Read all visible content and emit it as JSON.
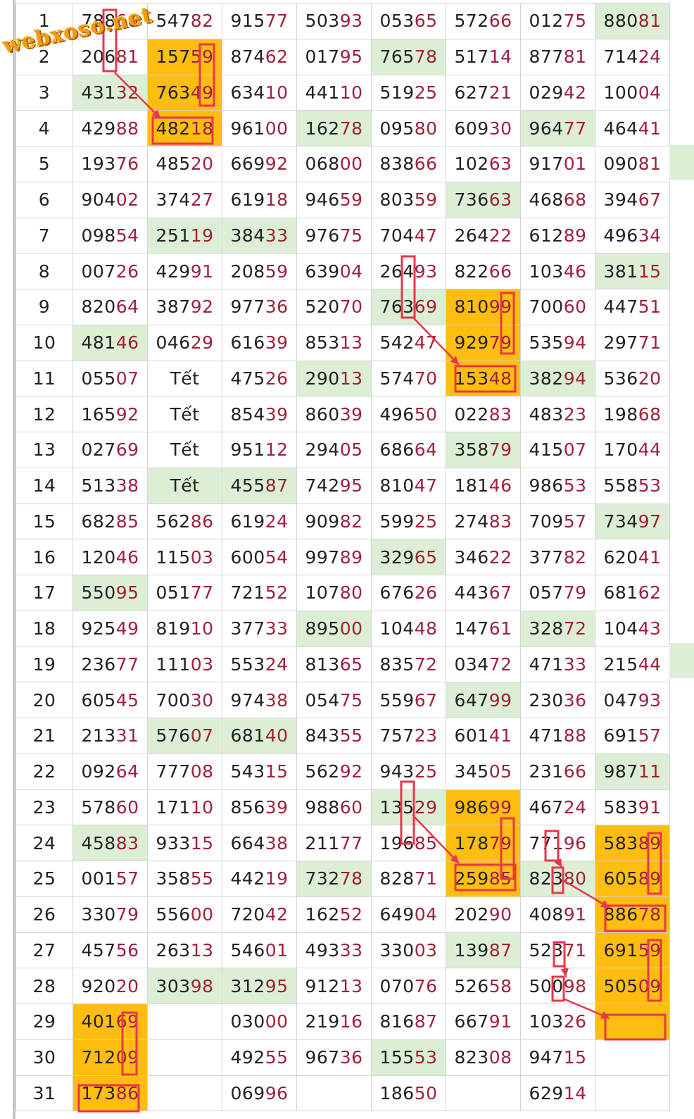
{
  "watermark": "webxoso.net",
  "colors": {
    "green_highlight": "#dcefd6",
    "orange_highlight": "#ffbd0f",
    "mark_red": "#e8364a",
    "day_blue": "#1e3aa8",
    "last_digits": "#a0213a"
  },
  "rows": [
    {
      "day": "1",
      "cells": [
        {
          "v": "78860",
          "h": ""
        },
        {
          "v": "54782",
          "h": ""
        },
        {
          "v": "91577",
          "h": ""
        },
        {
          "v": "50393",
          "h": ""
        },
        {
          "v": "05365",
          "h": ""
        },
        {
          "v": "57266",
          "h": ""
        },
        {
          "v": "01275",
          "h": ""
        },
        {
          "v": "88081",
          "h": "g"
        }
      ],
      "edge": ""
    },
    {
      "day": "2",
      "cells": [
        {
          "v": "20681",
          "h": ""
        },
        {
          "v": "15759",
          "h": "o"
        },
        {
          "v": "87462",
          "h": ""
        },
        {
          "v": "01795",
          "h": ""
        },
        {
          "v": "76578",
          "h": "g"
        },
        {
          "v": "51714",
          "h": ""
        },
        {
          "v": "87781",
          "h": ""
        },
        {
          "v": "71424",
          "h": ""
        }
      ],
      "edge": ""
    },
    {
      "day": "3",
      "cells": [
        {
          "v": "43132",
          "h": "g"
        },
        {
          "v": "76349",
          "h": "o"
        },
        {
          "v": "63410",
          "h": ""
        },
        {
          "v": "44110",
          "h": ""
        },
        {
          "v": "51925",
          "h": ""
        },
        {
          "v": "62721",
          "h": ""
        },
        {
          "v": "02942",
          "h": ""
        },
        {
          "v": "10004",
          "h": ""
        }
      ],
      "edge": ""
    },
    {
      "day": "4",
      "cells": [
        {
          "v": "42988",
          "h": ""
        },
        {
          "v": "48218",
          "h": "o"
        },
        {
          "v": "96100",
          "h": ""
        },
        {
          "v": "16278",
          "h": "g"
        },
        {
          "v": "09580",
          "h": ""
        },
        {
          "v": "60930",
          "h": ""
        },
        {
          "v": "96477",
          "h": "g"
        },
        {
          "v": "46441",
          "h": ""
        }
      ],
      "edge": ""
    },
    {
      "day": "5",
      "cells": [
        {
          "v": "19376",
          "h": ""
        },
        {
          "v": "48520",
          "h": ""
        },
        {
          "v": "66992",
          "h": ""
        },
        {
          "v": "06800",
          "h": ""
        },
        {
          "v": "83866",
          "h": ""
        },
        {
          "v": "10263",
          "h": ""
        },
        {
          "v": "91701",
          "h": ""
        },
        {
          "v": "09081",
          "h": ""
        }
      ],
      "edge": "g"
    },
    {
      "day": "6",
      "cells": [
        {
          "v": "90402",
          "h": ""
        },
        {
          "v": "37427",
          "h": ""
        },
        {
          "v": "61918",
          "h": ""
        },
        {
          "v": "94659",
          "h": ""
        },
        {
          "v": "80359",
          "h": ""
        },
        {
          "v": "73663",
          "h": "g"
        },
        {
          "v": "46868",
          "h": ""
        },
        {
          "v": "39467",
          "h": ""
        }
      ],
      "edge": ""
    },
    {
      "day": "7",
      "cells": [
        {
          "v": "09854",
          "h": ""
        },
        {
          "v": "25119",
          "h": "g"
        },
        {
          "v": "38433",
          "h": "g"
        },
        {
          "v": "97675",
          "h": ""
        },
        {
          "v": "70447",
          "h": ""
        },
        {
          "v": "26422",
          "h": ""
        },
        {
          "v": "61289",
          "h": ""
        },
        {
          "v": "49634",
          "h": ""
        }
      ],
      "edge": ""
    },
    {
      "day": "8",
      "cells": [
        {
          "v": "00726",
          "h": ""
        },
        {
          "v": "42991",
          "h": ""
        },
        {
          "v": "20859",
          "h": ""
        },
        {
          "v": "63904",
          "h": ""
        },
        {
          "v": "26493",
          "h": ""
        },
        {
          "v": "82266",
          "h": ""
        },
        {
          "v": "10346",
          "h": ""
        },
        {
          "v": "38115",
          "h": "g"
        }
      ],
      "edge": ""
    },
    {
      "day": "9",
      "cells": [
        {
          "v": "82064",
          "h": ""
        },
        {
          "v": "38792",
          "h": ""
        },
        {
          "v": "97736",
          "h": ""
        },
        {
          "v": "52070",
          "h": ""
        },
        {
          "v": "76369",
          "h": "g"
        },
        {
          "v": "81099",
          "h": "o"
        },
        {
          "v": "70060",
          "h": ""
        },
        {
          "v": "44751",
          "h": ""
        }
      ],
      "edge": ""
    },
    {
      "day": "10",
      "cells": [
        {
          "v": "48146",
          "h": "g"
        },
        {
          "v": "04629",
          "h": ""
        },
        {
          "v": "61639",
          "h": ""
        },
        {
          "v": "85313",
          "h": ""
        },
        {
          "v": "54247",
          "h": ""
        },
        {
          "v": "92979",
          "h": "o"
        },
        {
          "v": "53594",
          "h": ""
        },
        {
          "v": "29771",
          "h": ""
        }
      ],
      "edge": ""
    },
    {
      "day": "11",
      "cells": [
        {
          "v": "05507",
          "h": ""
        },
        {
          "v": "Tết",
          "h": ""
        },
        {
          "v": "47526",
          "h": ""
        },
        {
          "v": "29013",
          "h": "g"
        },
        {
          "v": "57470",
          "h": ""
        },
        {
          "v": "15348",
          "h": "o"
        },
        {
          "v": "38294",
          "h": "g"
        },
        {
          "v": "53620",
          "h": ""
        }
      ],
      "edge": ""
    },
    {
      "day": "12",
      "cells": [
        {
          "v": "16592",
          "h": ""
        },
        {
          "v": "Tết",
          "h": ""
        },
        {
          "v": "85439",
          "h": ""
        },
        {
          "v": "86039",
          "h": ""
        },
        {
          "v": "49650",
          "h": ""
        },
        {
          "v": "02283",
          "h": ""
        },
        {
          "v": "48323",
          "h": ""
        },
        {
          "v": "19868",
          "h": ""
        }
      ],
      "edge": ""
    },
    {
      "day": "13",
      "cells": [
        {
          "v": "02769",
          "h": ""
        },
        {
          "v": "Tết",
          "h": ""
        },
        {
          "v": "95112",
          "h": ""
        },
        {
          "v": "29405",
          "h": ""
        },
        {
          "v": "68664",
          "h": ""
        },
        {
          "v": "35879",
          "h": "g"
        },
        {
          "v": "41507",
          "h": ""
        },
        {
          "v": "17044",
          "h": ""
        }
      ],
      "edge": ""
    },
    {
      "day": "14",
      "cells": [
        {
          "v": "51338",
          "h": ""
        },
        {
          "v": "Tết",
          "h": "g"
        },
        {
          "v": "45587",
          "h": "g"
        },
        {
          "v": "74295",
          "h": ""
        },
        {
          "v": "81047",
          "h": ""
        },
        {
          "v": "18146",
          "h": ""
        },
        {
          "v": "98653",
          "h": ""
        },
        {
          "v": "55853",
          "h": ""
        }
      ],
      "edge": ""
    },
    {
      "day": "15",
      "cells": [
        {
          "v": "68285",
          "h": ""
        },
        {
          "v": "56286",
          "h": ""
        },
        {
          "v": "61924",
          "h": ""
        },
        {
          "v": "90982",
          "h": ""
        },
        {
          "v": "59925",
          "h": ""
        },
        {
          "v": "27483",
          "h": ""
        },
        {
          "v": "70957",
          "h": ""
        },
        {
          "v": "73497",
          "h": "g"
        }
      ],
      "edge": ""
    },
    {
      "day": "16",
      "cells": [
        {
          "v": "12046",
          "h": ""
        },
        {
          "v": "11503",
          "h": ""
        },
        {
          "v": "60054",
          "h": ""
        },
        {
          "v": "99789",
          "h": ""
        },
        {
          "v": "32965",
          "h": "g"
        },
        {
          "v": "34622",
          "h": ""
        },
        {
          "v": "37782",
          "h": ""
        },
        {
          "v": "62041",
          "h": ""
        }
      ],
      "edge": ""
    },
    {
      "day": "17",
      "cells": [
        {
          "v": "55095",
          "h": "g"
        },
        {
          "v": "05177",
          "h": ""
        },
        {
          "v": "72152",
          "h": ""
        },
        {
          "v": "10780",
          "h": ""
        },
        {
          "v": "67626",
          "h": ""
        },
        {
          "v": "44367",
          "h": ""
        },
        {
          "v": "05779",
          "h": ""
        },
        {
          "v": "68162",
          "h": ""
        }
      ],
      "edge": ""
    },
    {
      "day": "18",
      "cells": [
        {
          "v": "92549",
          "h": ""
        },
        {
          "v": "81910",
          "h": ""
        },
        {
          "v": "37733",
          "h": ""
        },
        {
          "v": "89500",
          "h": "g"
        },
        {
          "v": "10448",
          "h": ""
        },
        {
          "v": "14761",
          "h": ""
        },
        {
          "v": "32872",
          "h": "g"
        },
        {
          "v": "10443",
          "h": ""
        }
      ],
      "edge": ""
    },
    {
      "day": "19",
      "cells": [
        {
          "v": "23677",
          "h": ""
        },
        {
          "v": "11103",
          "h": ""
        },
        {
          "v": "55324",
          "h": ""
        },
        {
          "v": "81365",
          "h": ""
        },
        {
          "v": "83572",
          "h": ""
        },
        {
          "v": "03472",
          "h": ""
        },
        {
          "v": "47133",
          "h": ""
        },
        {
          "v": "21544",
          "h": ""
        }
      ],
      "edge": "g"
    },
    {
      "day": "20",
      "cells": [
        {
          "v": "60545",
          "h": ""
        },
        {
          "v": "70030",
          "h": ""
        },
        {
          "v": "97438",
          "h": ""
        },
        {
          "v": "05475",
          "h": ""
        },
        {
          "v": "55967",
          "h": ""
        },
        {
          "v": "64799",
          "h": "g"
        },
        {
          "v": "23036",
          "h": ""
        },
        {
          "v": "04793",
          "h": ""
        }
      ],
      "edge": ""
    },
    {
      "day": "21",
      "cells": [
        {
          "v": "21331",
          "h": ""
        },
        {
          "v": "57607",
          "h": "g"
        },
        {
          "v": "68140",
          "h": "g"
        },
        {
          "v": "84355",
          "h": ""
        },
        {
          "v": "75723",
          "h": ""
        },
        {
          "v": "60141",
          "h": ""
        },
        {
          "v": "47188",
          "h": ""
        },
        {
          "v": "69157",
          "h": ""
        }
      ],
      "edge": ""
    },
    {
      "day": "22",
      "cells": [
        {
          "v": "09264",
          "h": ""
        },
        {
          "v": "77708",
          "h": ""
        },
        {
          "v": "54315",
          "h": ""
        },
        {
          "v": "56292",
          "h": ""
        },
        {
          "v": "94325",
          "h": ""
        },
        {
          "v": "34505",
          "h": ""
        },
        {
          "v": "23166",
          "h": ""
        },
        {
          "v": "98711",
          "h": "g"
        }
      ],
      "edge": ""
    },
    {
      "day": "23",
      "cells": [
        {
          "v": "57860",
          "h": ""
        },
        {
          "v": "17110",
          "h": ""
        },
        {
          "v": "85639",
          "h": ""
        },
        {
          "v": "98860",
          "h": ""
        },
        {
          "v": "13529",
          "h": "g"
        },
        {
          "v": "98699",
          "h": "o"
        },
        {
          "v": "46724",
          "h": ""
        },
        {
          "v": "58391",
          "h": ""
        }
      ],
      "edge": ""
    },
    {
      "day": "24",
      "cells": [
        {
          "v": "45883",
          "h": "g"
        },
        {
          "v": "93315",
          "h": ""
        },
        {
          "v": "66438",
          "h": ""
        },
        {
          "v": "21177",
          "h": ""
        },
        {
          "v": "19685",
          "h": ""
        },
        {
          "v": "17879",
          "h": "o"
        },
        {
          "v": "77196",
          "h": ""
        },
        {
          "v": "58389",
          "h": "o"
        }
      ],
      "edge": ""
    },
    {
      "day": "25",
      "cells": [
        {
          "v": "00157",
          "h": ""
        },
        {
          "v": "35855",
          "h": ""
        },
        {
          "v": "44219",
          "h": ""
        },
        {
          "v": "73278",
          "h": "g"
        },
        {
          "v": "82871",
          "h": ""
        },
        {
          "v": "25985",
          "h": "o"
        },
        {
          "v": "82380",
          "h": "g"
        },
        {
          "v": "60589",
          "h": "o"
        }
      ],
      "edge": ""
    },
    {
      "day": "26",
      "cells": [
        {
          "v": "33079",
          "h": ""
        },
        {
          "v": "55600",
          "h": ""
        },
        {
          "v": "72042",
          "h": ""
        },
        {
          "v": "16252",
          "h": ""
        },
        {
          "v": "64904",
          "h": ""
        },
        {
          "v": "20290",
          "h": ""
        },
        {
          "v": "40891",
          "h": ""
        },
        {
          "v": "88678",
          "h": "o"
        }
      ],
      "edge": ""
    },
    {
      "day": "27",
      "cells": [
        {
          "v": "45756",
          "h": ""
        },
        {
          "v": "26313",
          "h": ""
        },
        {
          "v": "54601",
          "h": ""
        },
        {
          "v": "49333",
          "h": ""
        },
        {
          "v": "33003",
          "h": ""
        },
        {
          "v": "13987",
          "h": "g"
        },
        {
          "v": "52371",
          "h": ""
        },
        {
          "v": "69159",
          "h": "o"
        }
      ],
      "edge": ""
    },
    {
      "day": "28",
      "cells": [
        {
          "v": "92020",
          "h": ""
        },
        {
          "v": "30398",
          "h": "g"
        },
        {
          "v": "31295",
          "h": "g"
        },
        {
          "v": "91213",
          "h": ""
        },
        {
          "v": "07076",
          "h": ""
        },
        {
          "v": "52658",
          "h": ""
        },
        {
          "v": "50098",
          "h": ""
        },
        {
          "v": "50509",
          "h": "o"
        }
      ],
      "edge": ""
    },
    {
      "day": "29",
      "cells": [
        {
          "v": "40169",
          "h": "o"
        },
        {
          "v": "",
          "h": ""
        },
        {
          "v": "03000",
          "h": ""
        },
        {
          "v": "21916",
          "h": ""
        },
        {
          "v": "81687",
          "h": ""
        },
        {
          "v": "66791",
          "h": ""
        },
        {
          "v": "10326",
          "h": ""
        },
        {
          "v": "",
          "h": "o"
        }
      ],
      "edge": ""
    },
    {
      "day": "30",
      "cells": [
        {
          "v": "71209",
          "h": "o"
        },
        {
          "v": "",
          "h": ""
        },
        {
          "v": "49255",
          "h": ""
        },
        {
          "v": "96736",
          "h": ""
        },
        {
          "v": "15553",
          "h": "g"
        },
        {
          "v": "82308",
          "h": ""
        },
        {
          "v": "94715",
          "h": ""
        },
        {
          "v": "",
          "h": ""
        }
      ],
      "edge": ""
    },
    {
      "day": "31",
      "cells": [
        {
          "v": "17386",
          "h": "o"
        },
        {
          "v": "",
          "h": ""
        },
        {
          "v": "06996",
          "h": ""
        },
        {
          "v": "",
          "h": ""
        },
        {
          "v": "18650",
          "h": ""
        },
        {
          "v": "",
          "h": ""
        },
        {
          "v": "62914",
          "h": ""
        },
        {
          "v": "",
          "h": ""
        }
      ],
      "edge": ""
    }
  ]
}
